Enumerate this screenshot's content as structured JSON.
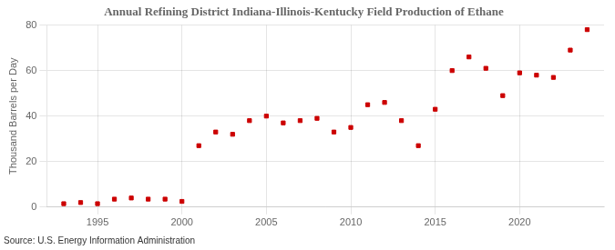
{
  "chart_data": {
    "type": "scatter",
    "title": "Annual Refining District Indiana-Illinois-Kentucky Field Production of Ethane",
    "ylabel": "Thousand Barrels per Day",
    "annotations": [
      "Source: U.S. Energy Information Administration"
    ],
    "x": [
      1993,
      1994,
      1995,
      1996,
      1997,
      1998,
      1999,
      2000,
      2001,
      2002,
      2003,
      2004,
      2005,
      2006,
      2007,
      2008,
      2009,
      2010,
      2011,
      2012,
      2013,
      2014,
      2015,
      2016,
      2017,
      2018,
      2019,
      2020,
      2021,
      2022,
      2023,
      2024
    ],
    "values": [
      1.5,
      2.0,
      1.5,
      3.5,
      4.0,
      3.5,
      3.5,
      2.5,
      27,
      33,
      32,
      38,
      40,
      37,
      38,
      39,
      33,
      35,
      45,
      46,
      38,
      27,
      43,
      60,
      66,
      61,
      49,
      59,
      58,
      57,
      69,
      78
    ],
    "color": "#cc0000",
    "marker": "square",
    "xlim": [
      1992,
      2025
    ],
    "ylim": [
      0,
      80
    ],
    "xticks": [
      1995,
      2000,
      2005,
      2010,
      2015,
      2020
    ],
    "yticks": [
      0,
      20,
      40,
      60,
      80
    ],
    "grid": true
  }
}
